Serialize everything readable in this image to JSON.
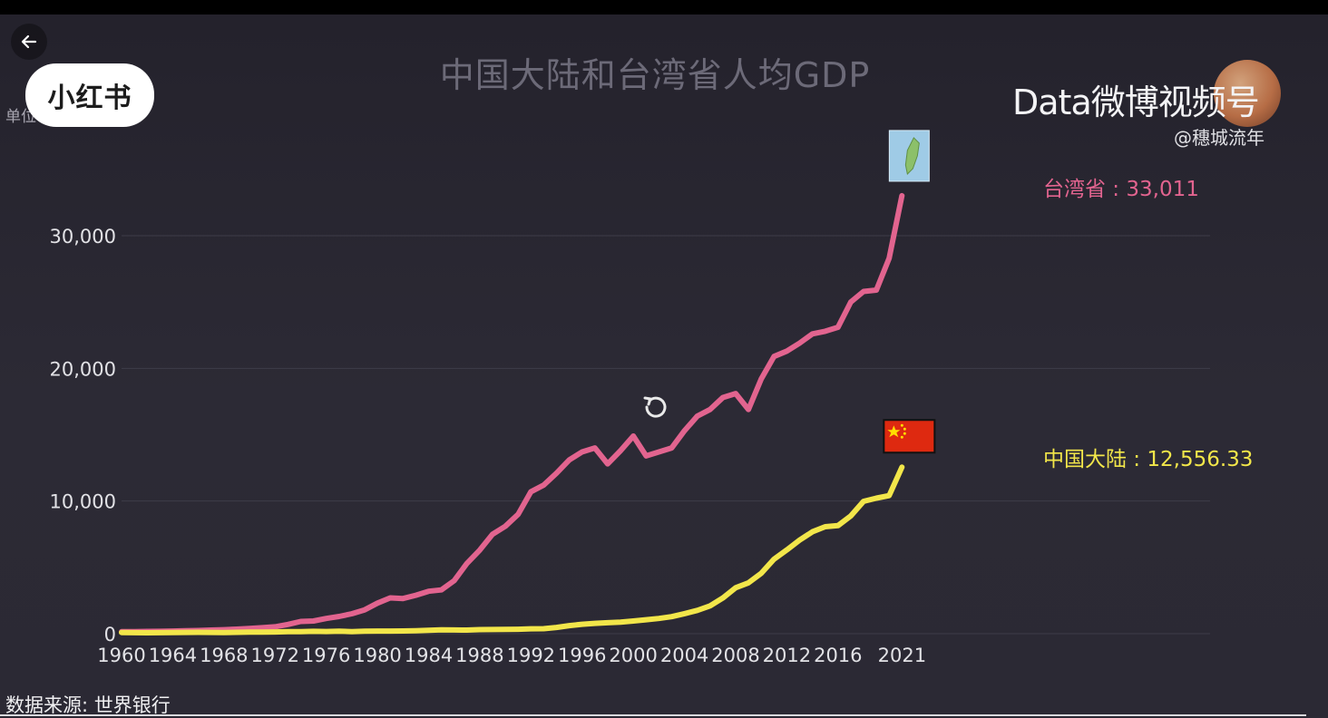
{
  "header": {
    "title": "中国大陆和台湾省人均GDP",
    "unit_label": "单位",
    "logo_text": "小红书"
  },
  "watermark": {
    "main": "Data微博视频号",
    "handle": "@穗城流年"
  },
  "source_text": "数据来源: 世界银行",
  "colors": {
    "taiwan": "#e2648f",
    "mainland": "#f2e64a",
    "background": "#2a2833",
    "grid": "#3e3c48"
  },
  "icons": {
    "back": "arrow-left-icon",
    "replay": "replay-icon",
    "taiwan_marker": "taiwan-map-icon",
    "mainland_marker": "china-flag-icon"
  },
  "chart_data": {
    "type": "line",
    "title": "中国大陆和台湾省人均GDP",
    "xlabel": "",
    "ylabel": "单位",
    "ylim": [
      0,
      30000
    ],
    "y_ticks": [
      0,
      10000,
      20000,
      30000
    ],
    "y_tick_labels": [
      "0",
      "10,000",
      "20,000",
      "30,000"
    ],
    "x_ticks": [
      1960,
      1964,
      1968,
      1972,
      1976,
      1980,
      1984,
      1988,
      1992,
      1996,
      2000,
      2004,
      2008,
      2012,
      2016,
      2021
    ],
    "x_tick_labels": [
      "1960",
      "1964",
      "1968",
      "1972",
      "1976",
      "1980",
      "1984",
      "1988",
      "1992",
      "1996",
      "2000",
      "2004",
      "2008",
      "2012",
      "2016",
      "2021"
    ],
    "grid": true,
    "series": [
      {
        "name": "台湾省",
        "end_label": "台湾省 : 33,011",
        "color": "#e2648f",
        "x": [
          1960,
          1961,
          1962,
          1963,
          1964,
          1965,
          1966,
          1967,
          1968,
          1969,
          1970,
          1971,
          1972,
          1973,
          1974,
          1975,
          1976,
          1977,
          1978,
          1979,
          1980,
          1981,
          1982,
          1983,
          1984,
          1985,
          1986,
          1987,
          1988,
          1989,
          1990,
          1991,
          1992,
          1993,
          1994,
          1995,
          1996,
          1997,
          1998,
          1999,
          2000,
          2001,
          2002,
          2003,
          2004,
          2005,
          2006,
          2007,
          2008,
          2009,
          2010,
          2011,
          2012,
          2013,
          2014,
          2015,
          2016,
          2017,
          2018,
          2019,
          2020,
          2021
        ],
        "y": [
          150,
          160,
          170,
          180,
          200,
          220,
          240,
          270,
          300,
          340,
          390,
          450,
          520,
          700,
          920,
          960,
          1150,
          1300,
          1500,
          1800,
          2300,
          2700,
          2650,
          2900,
          3200,
          3300,
          4000,
          5300,
          6300,
          7500,
          8100,
          9000,
          10700,
          11200,
          12100,
          13100,
          13700,
          14000,
          12800,
          13800,
          14900,
          13400,
          13700,
          14000,
          15300,
          16400,
          16900,
          17800,
          18100,
          16900,
          19200,
          20900,
          21300,
          21900,
          22600,
          22800,
          23100,
          25000,
          25800,
          25900,
          28300,
          33011
        ]
      },
      {
        "name": "中国大陆",
        "end_label": "中国大陆 : 12,556.33",
        "color": "#f2e64a",
        "x": [
          1960,
          1961,
          1962,
          1963,
          1964,
          1965,
          1966,
          1967,
          1968,
          1969,
          1970,
          1971,
          1972,
          1973,
          1974,
          1975,
          1976,
          1977,
          1978,
          1979,
          1980,
          1981,
          1982,
          1983,
          1984,
          1985,
          1986,
          1987,
          1988,
          1989,
          1990,
          1991,
          1992,
          1993,
          1994,
          1995,
          1996,
          1997,
          1998,
          1999,
          2000,
          2001,
          2002,
          2003,
          2004,
          2005,
          2006,
          2007,
          2008,
          2009,
          2010,
          2011,
          2012,
          2013,
          2014,
          2015,
          2016,
          2017,
          2018,
          2019,
          2020,
          2021
        ],
        "y": [
          90,
          76,
          70,
          74,
          85,
          98,
          104,
          96,
          91,
          100,
          113,
          119,
          132,
          157,
          160,
          178,
          165,
          185,
          156,
          184,
          195,
          197,
          203,
          225,
          251,
          294,
          282,
          270,
          307,
          311,
          318,
          333,
          366,
          377,
          473,
          610,
          709,
          782,
          829,
          873,
          959,
          1053,
          1148,
          1288,
          1508,
          1753,
          2099,
          2694,
          3468,
          3832,
          4550,
          5618,
          6317,
          7051,
          7679,
          8067,
          8148,
          8879,
          9977,
          10217,
          10409,
          12556.33
        ]
      }
    ]
  }
}
